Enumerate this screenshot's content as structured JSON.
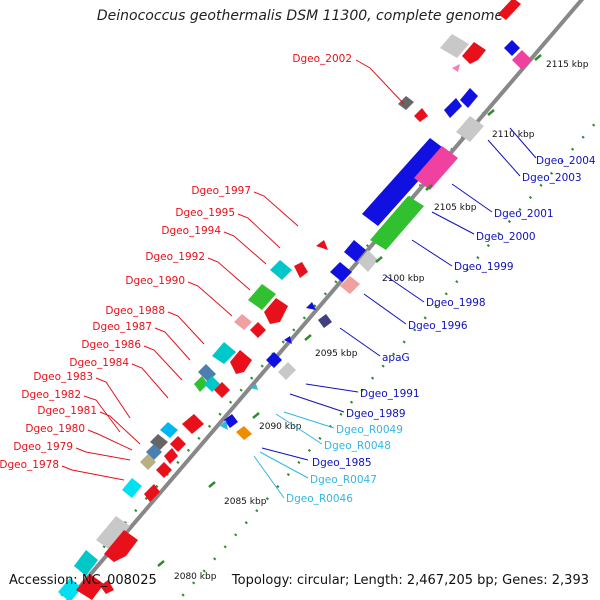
{
  "title": "Deinococcus geothermalis DSM 11300, complete genome",
  "footer": {
    "accession": "Accession: NC_008025",
    "summary": "Topology: circular; Length: 2,467,205 bp; Genes: 2,393"
  },
  "colors": {
    "backbone": "#888888",
    "tick": "#2e8b2e",
    "forward_label": "#e8101a",
    "reverse_label": "#1010c0",
    "rna_label": "#30b8e0"
  },
  "ruler": {
    "ticks": [
      {
        "label": "2115 kbp"
      },
      {
        "label": "2110 kbp"
      },
      {
        "label": "2105 kbp"
      },
      {
        "label": "2100 kbp"
      },
      {
        "label": "2095 kbp"
      },
      {
        "label": "2090 kbp"
      },
      {
        "label": "2085 kbp"
      },
      {
        "label": "2080 kbp"
      }
    ]
  },
  "left_labels": [
    {
      "text": "Dgeo_2002"
    },
    {
      "text": "Dgeo_1997"
    },
    {
      "text": "Dgeo_1995"
    },
    {
      "text": "Dgeo_1994"
    },
    {
      "text": "Dgeo_1992"
    },
    {
      "text": "Dgeo_1990"
    },
    {
      "text": "Dgeo_1988"
    },
    {
      "text": "Dgeo_1987"
    },
    {
      "text": "Dgeo_1986"
    },
    {
      "text": "Dgeo_1984"
    },
    {
      "text": "Dgeo_1983"
    },
    {
      "text": "Dgeo_1982"
    },
    {
      "text": "Dgeo_1981"
    },
    {
      "text": "Dgeo_1980"
    },
    {
      "text": "Dgeo_1979"
    },
    {
      "text": "Dgeo_1978"
    }
  ],
  "right_labels": [
    {
      "text": "Dgeo_2004"
    },
    {
      "text": "Dgeo_2003"
    },
    {
      "text": "Dgeo_2001"
    },
    {
      "text": "Dgeo_2000"
    },
    {
      "text": "Dgeo_1999"
    },
    {
      "text": "Dgeo_1998"
    },
    {
      "text": "Dgeo_1996"
    },
    {
      "text": "apaG"
    },
    {
      "text": "Dgeo_1991"
    },
    {
      "text": "Dgeo_1989"
    },
    {
      "text": "Dgeo_R0049"
    },
    {
      "text": "Dgeo_R0048"
    },
    {
      "text": "Dgeo_1985"
    },
    {
      "text": "Dgeo_R0047"
    },
    {
      "text": "Dgeo_R0046"
    }
  ]
}
